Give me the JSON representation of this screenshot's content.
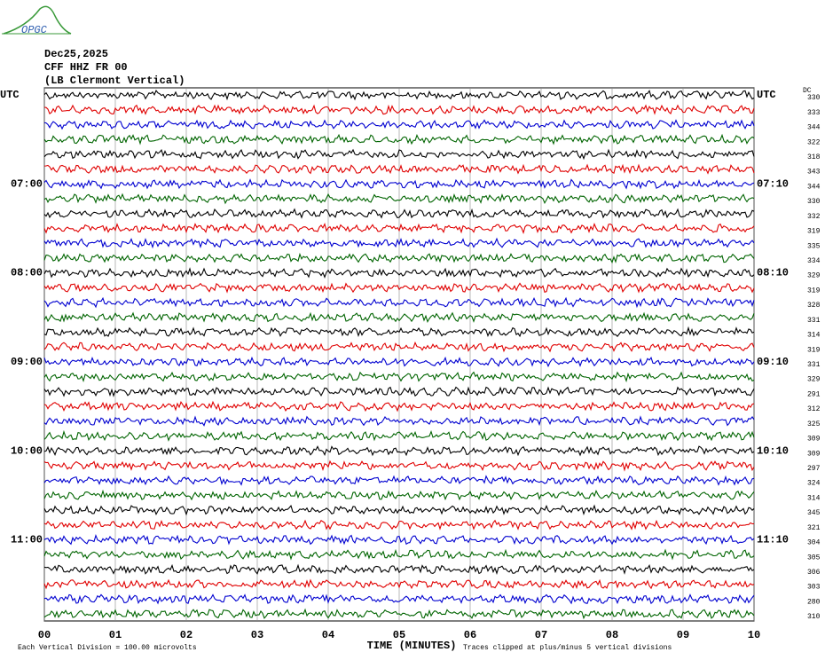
{
  "header": {
    "logo": "OPGC",
    "date": "Dec25,2025",
    "station": "CFF HHZ FR 00",
    "location": "(LB  Clermont Vertical)",
    "dc_label": "DC"
  },
  "rows": [
    {
      "dc": "330",
      "left": "UTC",
      "right": "UTC"
    },
    {
      "dc": "333"
    },
    {
      "dc": "344"
    },
    {
      "dc": "322"
    },
    {
      "dc": "318"
    },
    {
      "dc": "343"
    },
    {
      "dc": "344",
      "left": "07:00",
      "right": "07:10"
    },
    {
      "dc": "330"
    },
    {
      "dc": "332"
    },
    {
      "dc": "319"
    },
    {
      "dc": "335"
    },
    {
      "dc": "334"
    },
    {
      "dc": "329",
      "left": "08:00",
      "right": "08:10"
    },
    {
      "dc": "319"
    },
    {
      "dc": "328"
    },
    {
      "dc": "331"
    },
    {
      "dc": "314"
    },
    {
      "dc": "319"
    },
    {
      "dc": "331",
      "left": "09:00",
      "right": "09:10"
    },
    {
      "dc": "329"
    },
    {
      "dc": "291"
    },
    {
      "dc": "312"
    },
    {
      "dc": "325"
    },
    {
      "dc": "309"
    },
    {
      "dc": "309",
      "left": "10:00",
      "right": "10:10"
    },
    {
      "dc": "297"
    },
    {
      "dc": "324"
    },
    {
      "dc": "314"
    },
    {
      "dc": "345"
    },
    {
      "dc": "321"
    },
    {
      "dc": "304",
      "left": "11:00",
      "right": "11:10"
    },
    {
      "dc": "305"
    },
    {
      "dc": "306"
    },
    {
      "dc": "303"
    },
    {
      "dc": "280"
    },
    {
      "dc": "310"
    }
  ],
  "trace_colors": [
    "#000000",
    "#e00000",
    "#0000d0",
    "#006400"
  ],
  "x_axis": {
    "ticks": [
      "00",
      "01",
      "02",
      "03",
      "04",
      "05",
      "06",
      "07",
      "08",
      "09",
      "10"
    ],
    "title": "TIME (MINUTES)"
  },
  "footer": {
    "scale": "Each Vertical Division =  100.00 microvolts",
    "clip": "Traces clipped at plus/minus 5 vertical divisions"
  }
}
